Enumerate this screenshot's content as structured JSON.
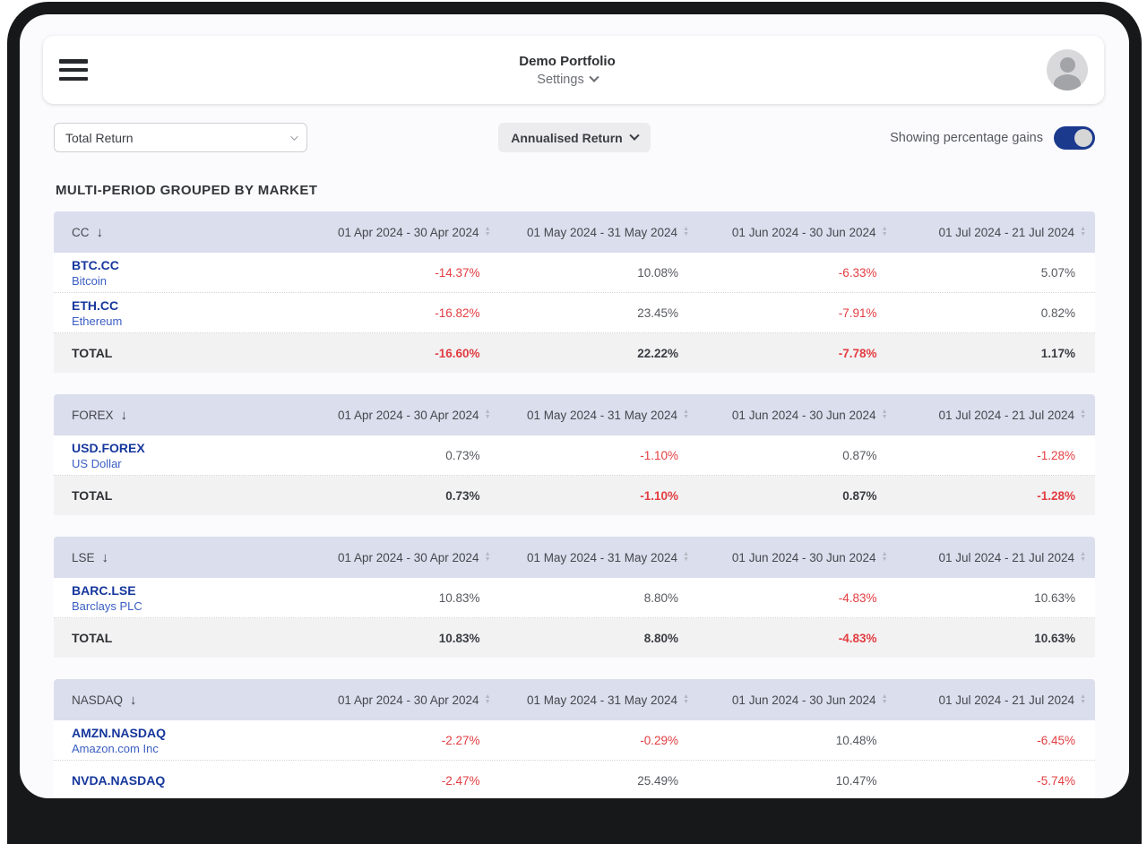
{
  "header": {
    "title": "Demo Portfolio",
    "settings_label": "Settings"
  },
  "toolbar": {
    "metric_select_value": "Total Return",
    "return_mode_button": "Annualised Return",
    "toggle_label": "Showing percentage gains",
    "toggle_state": "on"
  },
  "page_title": "MULTI-PERIOD GROUPED BY MARKET",
  "total_label": "TOTAL",
  "periods": [
    "01 Apr 2024 - 30 Apr 2024",
    "01 May 2024 - 31 May 2024",
    "01 Jun 2024 - 30 Jun 2024",
    "01 Jul 2024 - 21 Jul 2024"
  ],
  "tables": [
    {
      "market": "CC",
      "rows": [
        {
          "symbol": "BTC.CC",
          "name": "Bitcoin",
          "values": [
            "-14.37%",
            "10.08%",
            "-6.33%",
            "5.07%"
          ]
        },
        {
          "symbol": "ETH.CC",
          "name": "Ethereum",
          "values": [
            "-16.82%",
            "23.45%",
            "-7.91%",
            "0.82%"
          ]
        }
      ],
      "total": [
        "-16.60%",
        "22.22%",
        "-7.78%",
        "1.17%"
      ]
    },
    {
      "market": "FOREX",
      "rows": [
        {
          "symbol": "USD.FOREX",
          "name": "US Dollar",
          "values": [
            "0.73%",
            "-1.10%",
            "0.87%",
            "-1.28%"
          ]
        }
      ],
      "total": [
        "0.73%",
        "-1.10%",
        "0.87%",
        "-1.28%"
      ]
    },
    {
      "market": "LSE",
      "rows": [
        {
          "symbol": "BARC.LSE",
          "name": "Barclays PLC",
          "values": [
            "10.83%",
            "8.80%",
            "-4.83%",
            "10.63%"
          ]
        }
      ],
      "total": [
        "10.83%",
        "8.80%",
        "-4.83%",
        "10.63%"
      ]
    },
    {
      "market": "NASDAQ",
      "rows": [
        {
          "symbol": "AMZN.NASDAQ",
          "name": "Amazon.com Inc",
          "values": [
            "-2.27%",
            "-0.29%",
            "10.48%",
            "-6.45%"
          ]
        },
        {
          "symbol": "NVDA.NASDAQ",
          "name": "",
          "values": [
            "-2.47%",
            "25.49%",
            "10.47%",
            "-5.74%"
          ]
        }
      ],
      "total": null
    }
  ],
  "colors": {
    "accent_blue": "#1b3a8e",
    "symbol_blue": "#16379c",
    "name_blue": "#3a5ec2",
    "negative_red": "#e23d41",
    "table_header_bg": "#dadeed",
    "total_row_bg": "#f2f2f3"
  }
}
